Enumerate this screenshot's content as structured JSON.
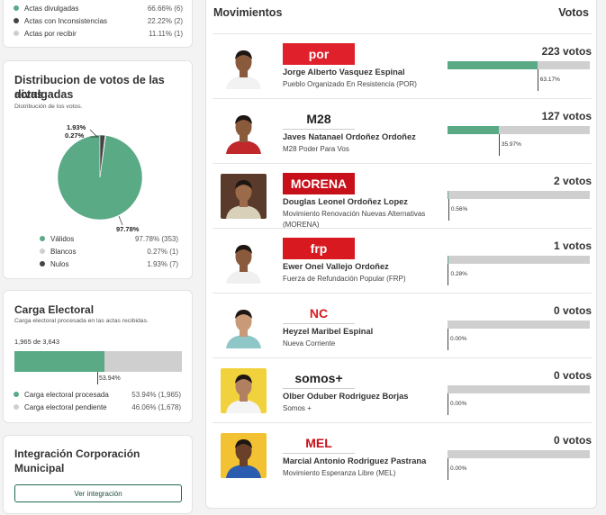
{
  "status_legend": [
    {
      "label": "Actas divulgadas",
      "value": "66.66% (6)",
      "color": "#5aaa86"
    },
    {
      "label": "Actas con Inconsistencias",
      "value": "22.22% (2)",
      "color": "#444444"
    },
    {
      "label": "Actas por recibir",
      "value": "11.11% (1)",
      "color": "#cfcfcf"
    }
  ],
  "distribution": {
    "title_line1": "Distribucion de votos de las actas",
    "title_line2": "divulgadas",
    "subtitle": "Distribución de los votos.",
    "label_nulos": "1.93%",
    "label_blancos": "0.27%",
    "label_validos": "97.78%",
    "legend": [
      {
        "label": "Válidos",
        "value": "97.78% (353)",
        "color": "#5aaa86"
      },
      {
        "label": "Blancos",
        "value": "0.27% (1)",
        "color": "#cfcfcf"
      },
      {
        "label": "Nulos",
        "value": "1.93% (7)",
        "color": "#444444"
      }
    ]
  },
  "chart_data": {
    "type": "pie",
    "categories": [
      "Válidos",
      "Blancos",
      "Nulos"
    ],
    "values": [
      353,
      1,
      7
    ],
    "percentages": [
      97.78,
      0.27,
      1.93
    ],
    "colors": [
      "#5aaa86",
      "#cfcfcf",
      "#444444"
    ]
  },
  "carga": {
    "title": "Carga Electoral",
    "subtitle": "Carga electoral procesada en las actas recibidas.",
    "count": "1,965 de 3,643",
    "percent": 53.94,
    "bar_label": "53.94%",
    "legend": [
      {
        "label": "Carga electoral procesada",
        "value": "53.94% (1,965)",
        "color": "#5aaa86"
      },
      {
        "label": "Carga electoral pendiente",
        "value": "46.06% (1,678)",
        "color": "#cfcfcf"
      }
    ]
  },
  "integracion": {
    "title_line1": "Integración Corporación",
    "title_line2": "Municipal",
    "button": "Ver integración"
  },
  "movimientos": {
    "header": "Movimientos",
    "votes_header": "Votos",
    "candidates": [
      {
        "name": "Jorge Alberto Vasquez Espinal",
        "party": "Pueblo Organizado En Resistencia (POR)",
        "votes": "223 votos",
        "pct": "63.17%",
        "share": 63.17,
        "logo": "por",
        "logo_bg": "#e0202a",
        "logo_color": "#ffffff",
        "photo_bg": "#ffffff",
        "skin": "#8a5a3c",
        "shirt": "#f2f2f2"
      },
      {
        "name": "Javes Natanael Ordoñez Ordoñez",
        "party": "M28 Poder Para Vos",
        "votes": "127 votos",
        "pct": "35.97%",
        "share": 35.97,
        "logo": "M28",
        "logo_bg": "#ffffff",
        "logo_color": "#222222",
        "photo_bg": "#ffffff",
        "skin": "#8a5a3c",
        "shirt": "#c0282b"
      },
      {
        "name": "Douglas Leonel Ordoñez Lopez",
        "party": "Movimiento Renovación Nuevas Alternativas (MORENA)",
        "votes": "2 votos",
        "pct": "0.56%",
        "share": 0.56,
        "logo": "MORENA",
        "logo_bg": "#c8101a",
        "logo_color": "#ffffff",
        "photo_bg": "#5a3a2a",
        "skin": "#9a6a4a",
        "shirt": "#d8d0b8"
      },
      {
        "name": "Ewer Onel Vallejo Ordoñez",
        "party": "Fuerza de Refundación Popular (FRP)",
        "votes": "1 votos",
        "pct": "0.28%",
        "share": 0.28,
        "logo": "frp",
        "logo_bg": "#d81a20",
        "logo_color": "#ffffff",
        "photo_bg": "#ffffff",
        "skin": "#8a5a3c",
        "shirt": "#f0f0f0"
      },
      {
        "name": "Heyzel Maribel Espinal",
        "party": "Nueva Corriente",
        "votes": "0 votos",
        "pct": "0.00%",
        "share": 0,
        "logo": "NC",
        "logo_bg": "#ffffff",
        "logo_color": "#d81a20",
        "photo_bg": "#ffffff",
        "skin": "#c89a78",
        "shirt": "#8fc7c9"
      },
      {
        "name": "Olber Oduber Rodriguez Borjas",
        "party": "Somos +",
        "votes": "0 votos",
        "pct": "0.00%",
        "share": 0,
        "logo": "somos+",
        "logo_bg": "#ffffff",
        "logo_color": "#222222",
        "photo_bg": "#f2d23c",
        "skin": "#b08060",
        "shirt": "#f4f4f4"
      },
      {
        "name": "Marcial Antonio Rodriguez Pastrana",
        "party": "Movimiento Esperanza Libre (MEL)",
        "votes": "0 votos",
        "pct": "0.00%",
        "share": 0,
        "logo": "MEL",
        "logo_bg": "#ffffff",
        "logo_color": "#c8101a",
        "photo_bg": "#f2c232",
        "skin": "#6a4028",
        "shirt": "#2a5db0"
      }
    ]
  }
}
